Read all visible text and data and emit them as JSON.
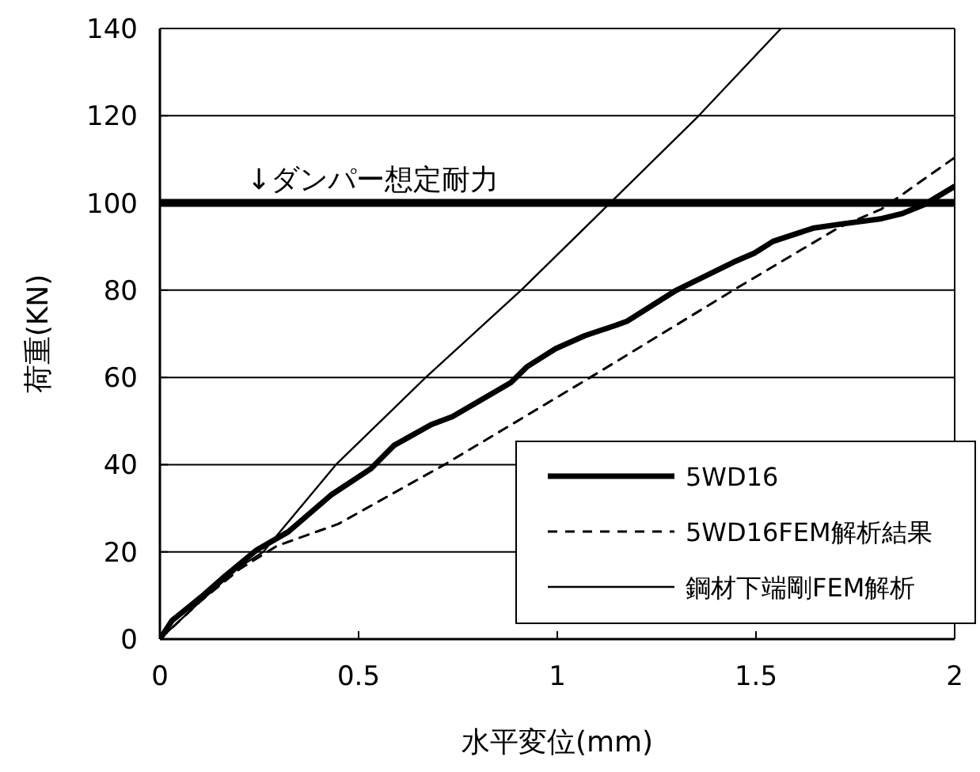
{
  "chart_data": {
    "type": "line",
    "xlabel": "水平変位(mm)",
    "ylabel": "荷重(KN)",
    "xlim": [
      0,
      2
    ],
    "xticks": [
      0,
      {
        "value": 0.5,
        "label": "0.5"
      },
      1,
      {
        "value": 1.5,
        "label": "1.5"
      },
      2
    ],
    "ylim": [
      0,
      140
    ],
    "yticks": [
      0,
      20,
      40,
      60,
      80,
      100,
      120,
      140
    ],
    "grid": "y",
    "legend": "bottom right",
    "marker": "none",
    "ref_lines": [
      {
        "axis": "y",
        "value": 100,
        "label": "↓ダンパー想定耐力",
        "color": "#000000",
        "line_style": "solid"
      }
    ],
    "series": [
      {
        "name": "5WD16",
        "color": "#000000",
        "line_style": "solid",
        "x": [
          0,
          0.03,
          0.103,
          0.163,
          0.243,
          0.323,
          0.43,
          0.53,
          0.589,
          0.683,
          0.736,
          0.883,
          0.923,
          0.996,
          1.07,
          1.149,
          1.176,
          1.296,
          1.443,
          1.496,
          1.543,
          1.643,
          1.709,
          1.816,
          1.869,
          1.923,
          2.0
        ],
        "values": [
          0,
          4.2,
          9.6,
          14.4,
          20.4,
          24.6,
          33,
          39,
          44.4,
          49.2,
          51,
          58.8,
          62.4,
          66.6,
          69.6,
          72,
          72.9,
          79.8,
          86.4,
          88.5,
          91.2,
          94.2,
          95.1,
          96.4,
          97.6,
          99.6,
          103.8
        ]
      },
      {
        "name": "5WD16FEM解析結果",
        "color": "#000000",
        "line_style": "dashed",
        "x": [
          0,
          0.1,
          0.2,
          0.295,
          0.449,
          0.716,
          1.083,
          1.443,
          1.709,
          1.816,
          2.0
        ],
        "values": [
          0,
          8.5,
          16,
          21.4,
          26.4,
          40,
          60,
          80,
          94.4,
          98.6,
          110.4
        ]
      },
      {
        "name": "鋼材下端剛FEM解析",
        "color": "#000000",
        "line_style": "solid",
        "x": [
          0,
          0.1,
          0.2,
          0.26,
          0.443,
          0.669,
          0.909,
          1.133,
          1.356,
          1.563
        ],
        "values": [
          0,
          8.5,
          16.5,
          20,
          40,
          60,
          80,
          100,
          120,
          140
        ]
      }
    ]
  }
}
